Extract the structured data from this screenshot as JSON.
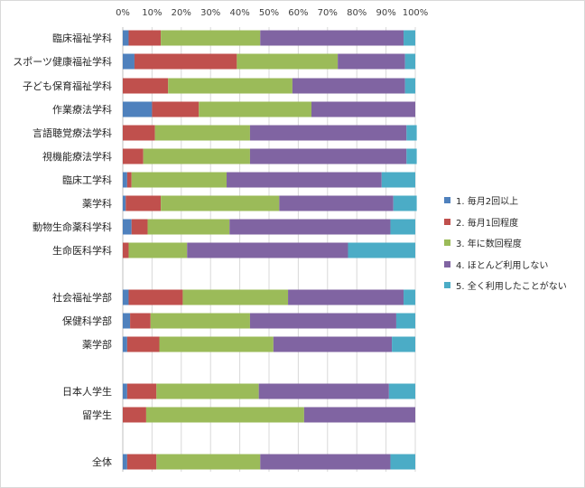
{
  "chart_data": {
    "type": "bar",
    "orientation": "horizontal",
    "stacked": "percent",
    "xlim": [
      0,
      100
    ],
    "x_ticks": [
      "0%",
      "10%",
      "20%",
      "30%",
      "40%",
      "50%",
      "60%",
      "70%",
      "80%",
      "90%",
      "100%"
    ],
    "grid": true,
    "legend_position": "right",
    "categories": [
      "臨床福祉学科",
      "スポーツ健康福祉学科",
      "子ども保育福祉学科",
      "作業療法学科",
      "言語聴覚療法学科",
      "視機能療法学科",
      "臨床工学科",
      "薬学科",
      "動物生命薬科学科",
      "生命医科学科",
      "社会福祉学部",
      "保健科学部",
      "薬学部",
      "日本人学生",
      "留学生",
      "全体"
    ],
    "series": [
      {
        "name": "1. 毎月2回以上",
        "color": "#4f81bd",
        "values": [
          2,
          4,
          0,
          10,
          0,
          0,
          1.5,
          1,
          3,
          0,
          2,
          2.5,
          1.5,
          1.5,
          0,
          1.5
        ]
      },
      {
        "name": "2. 毎月1回程度",
        "color": "#c0504d",
        "values": [
          11,
          35,
          15.5,
          16,
          11,
          7,
          1.5,
          12,
          5.5,
          2,
          18.5,
          7,
          11,
          10,
          8,
          10
        ]
      },
      {
        "name": "3. 年に数回程度",
        "color": "#9bbb59",
        "values": [
          34,
          34.5,
          42.5,
          38.5,
          32.5,
          36.5,
          32.5,
          40.5,
          28,
          20,
          36,
          34,
          39,
          35,
          54,
          35.5
        ]
      },
      {
        "name": "4. ほとんど利用しない",
        "color": "#8064a2",
        "values": [
          49,
          23,
          38.5,
          35.5,
          53.5,
          53.5,
          53,
          39,
          55,
          55,
          39.5,
          50,
          40.5,
          44.5,
          38,
          44.5
        ]
      },
      {
        "name": "5. 全く利用したことがない",
        "color": "#4bacc6",
        "values": [
          4,
          3.5,
          3.5,
          0,
          3.5,
          3.5,
          11.5,
          8,
          8.5,
          23,
          4,
          6.5,
          8,
          9,
          0,
          8.5
        ]
      }
    ]
  }
}
